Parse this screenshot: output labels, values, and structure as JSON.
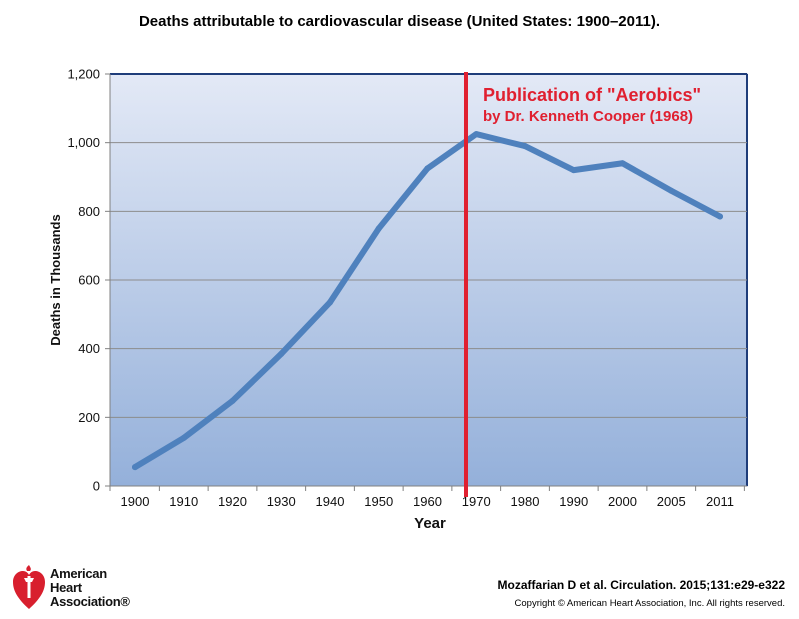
{
  "chart_data": {
    "type": "line",
    "title": "Deaths attributable to cardiovascular disease (United States: 1900–2011).",
    "xlabel": "Year",
    "ylabel": "Deaths in Thousands",
    "categories": [
      "1900",
      "1910",
      "1920",
      "1930",
      "1940",
      "1950",
      "1960",
      "1970",
      "1980",
      "1990",
      "2000",
      "2005",
      "2011"
    ],
    "series": [
      {
        "values": [
          55,
          140,
          248,
          385,
          535,
          750,
          925,
          1025,
          990,
          920,
          940,
          860,
          785
        ],
        "color": "#4f81bd"
      }
    ],
    "ylim": [
      0,
      1200
    ],
    "yticks": [
      "0",
      "200",
      "400",
      "600",
      "800",
      "1,000",
      "1,200"
    ],
    "ytick_values": [
      0,
      200,
      400,
      600,
      800,
      1000,
      1200
    ],
    "grid": true,
    "annotation": {
      "line1": "Publication of \"Aerobics\"",
      "line2": "by Dr. Kenneth Cooper (1968)",
      "color": "#e02030"
    }
  },
  "footer": {
    "logo_line1": "American",
    "logo_line2": "Heart",
    "logo_line3": "Association®",
    "citation": "Mozaffarian D et al. Circulation. 2015;131:e29-e322",
    "copyright": "Copyright © American Heart Association, Inc. All rights reserved."
  }
}
